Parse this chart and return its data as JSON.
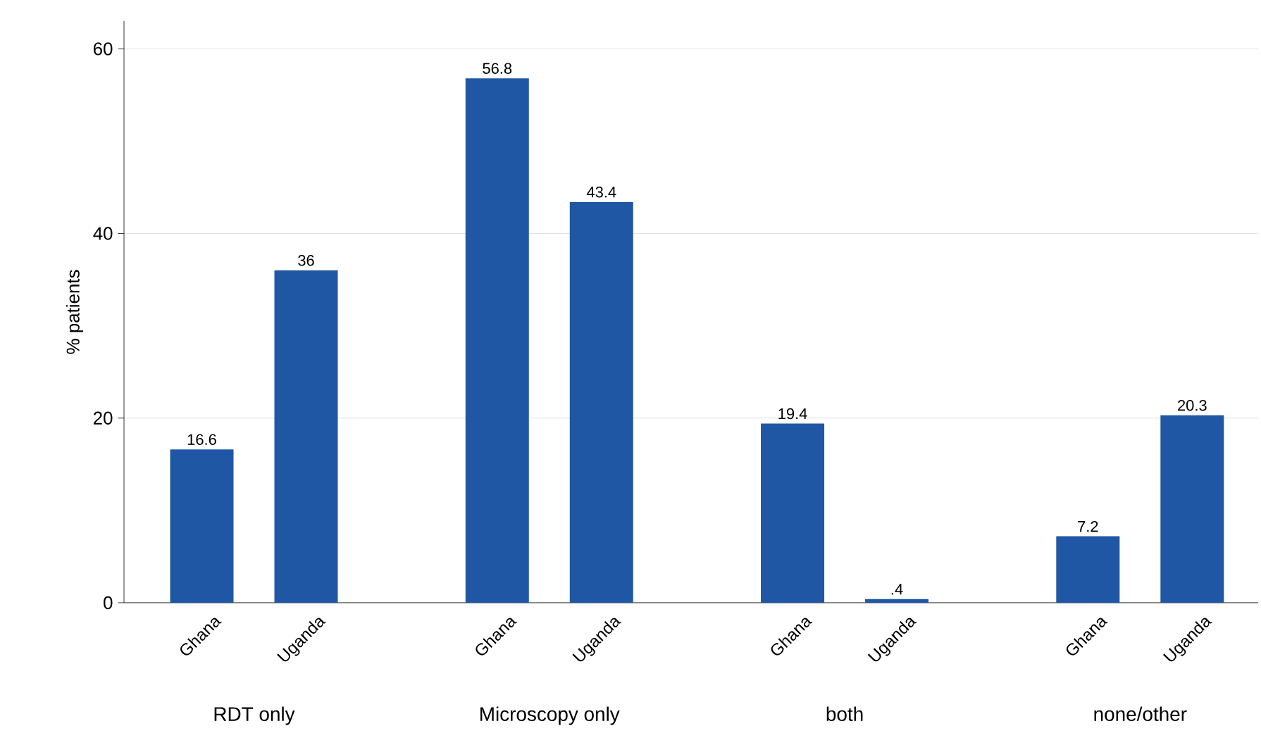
{
  "chart_data": {
    "type": "bar",
    "ylabel": "% patients",
    "categories": [
      "RDT only",
      "Microscopy only",
      "both",
      "none/other"
    ],
    "series": [
      {
        "name": "Ghana",
        "color": "#1f57a4",
        "values": [
          16.6,
          56.8,
          19.4,
          7.2
        ],
        "value_labels": [
          "16.6",
          "56.8",
          "19.4",
          "7.2"
        ]
      },
      {
        "name": "Uganda",
        "color": "#1f57a4",
        "values": [
          36,
          43.4,
          0.4,
          20.3
        ],
        "value_labels": [
          "36",
          "43.4",
          ".4",
          "20.3"
        ]
      }
    ],
    "ylim": [
      0,
      63
    ],
    "yticks": [
      0,
      20,
      40,
      60
    ],
    "grid": "y"
  }
}
